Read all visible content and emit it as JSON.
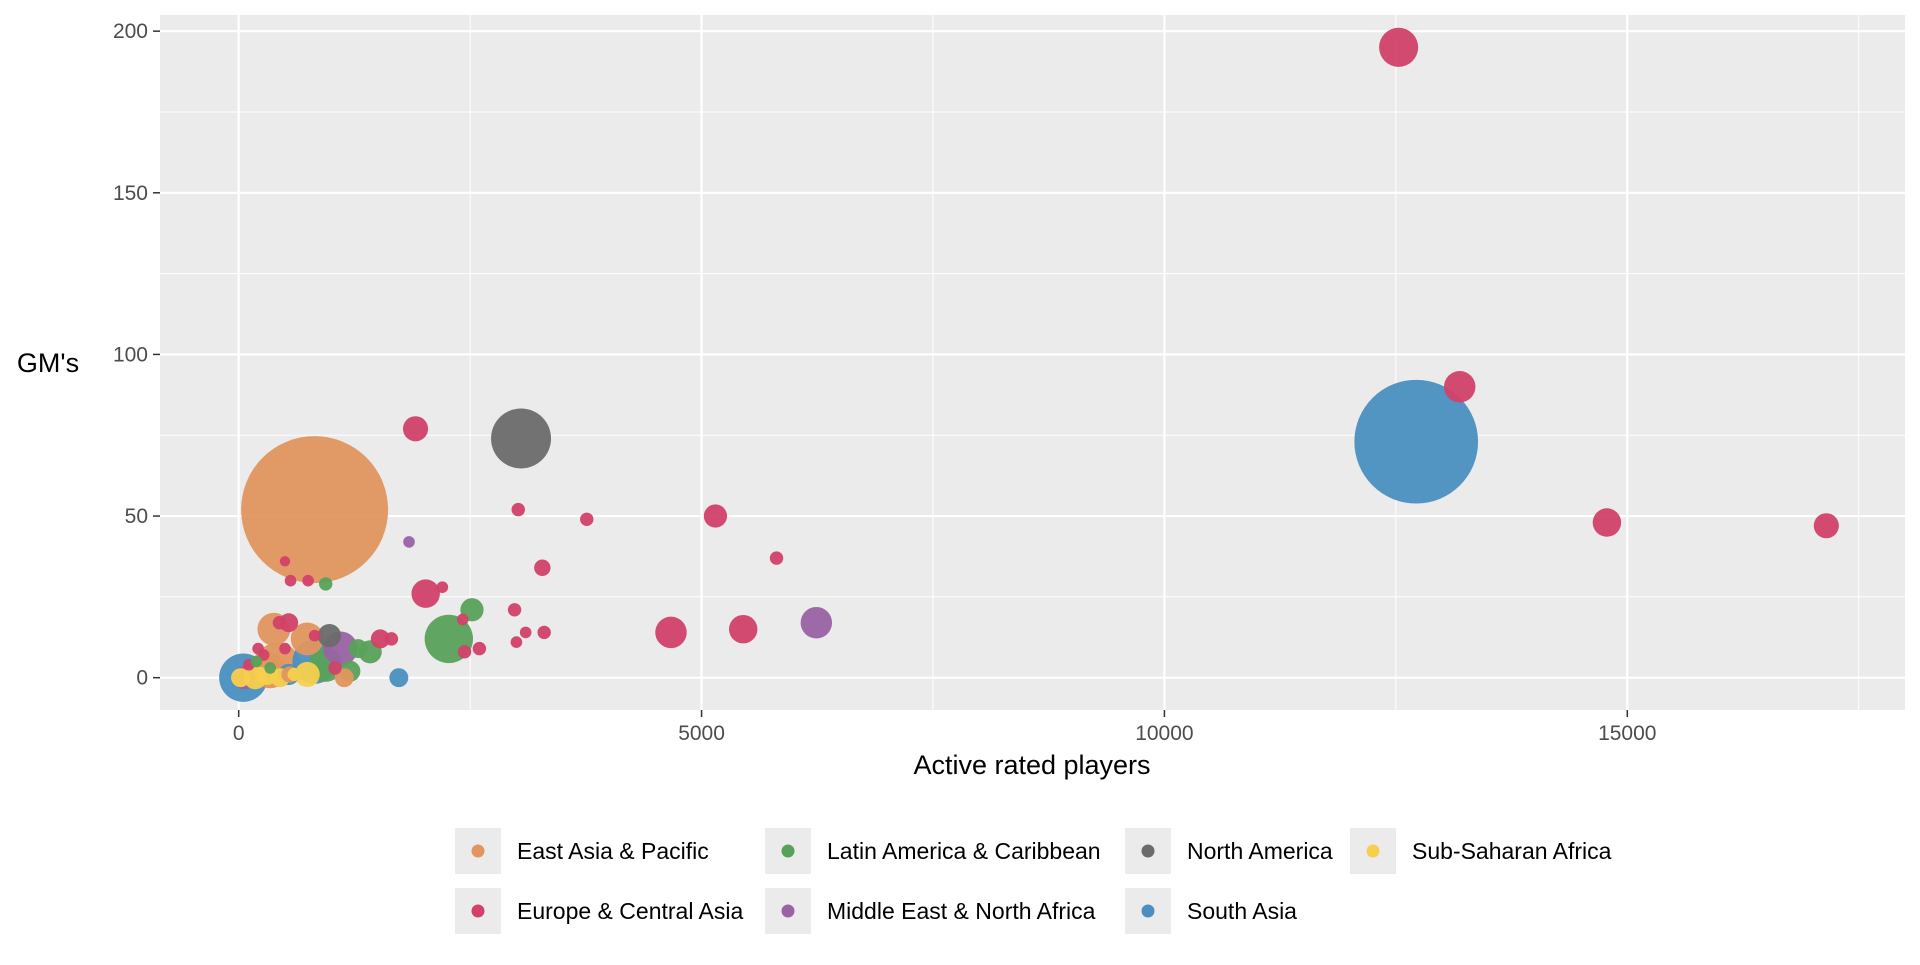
{
  "chart_data": {
    "type": "scatter",
    "title": "",
    "xlabel": "Active rated players",
    "ylabel": "GM's",
    "xlim": [
      -850,
      18000
    ],
    "ylim": [
      -10,
      205
    ],
    "x_ticks": [
      0,
      5000,
      10000,
      15000
    ],
    "y_ticks": [
      0,
      50,
      100,
      150,
      200
    ],
    "grid": true,
    "legend_position": "bottom",
    "size_encodes": "bubble area (unlabeled third variable)",
    "series": [
      {
        "name": "East Asia & Pacific",
        "color": "#E0965E",
        "points": [
          {
            "x": 820,
            "y": 52,
            "s": 2400
          },
          {
            "x": 380,
            "y": 15,
            "s": 120
          },
          {
            "x": 740,
            "y": 12,
            "s": 120
          },
          {
            "x": 420,
            "y": 4,
            "s": 220
          },
          {
            "x": 340,
            "y": 2,
            "s": 130
          },
          {
            "x": 550,
            "y": 1,
            "s": 30
          },
          {
            "x": 1140,
            "y": 0,
            "s": 40
          },
          {
            "x": 280,
            "y": 6,
            "s": 40
          }
        ]
      },
      {
        "name": "Europe & Central Asia",
        "color": "#D2416A",
        "points": [
          {
            "x": 12530,
            "y": 195,
            "s": 170
          },
          {
            "x": 13190,
            "y": 90,
            "s": 110
          },
          {
            "x": 14780,
            "y": 48,
            "s": 90
          },
          {
            "x": 17150,
            "y": 47,
            "s": 70
          },
          {
            "x": 1910,
            "y": 77,
            "s": 70
          },
          {
            "x": 5150,
            "y": 50,
            "s": 60
          },
          {
            "x": 3020,
            "y": 52,
            "s": 20
          },
          {
            "x": 3760,
            "y": 49,
            "s": 20
          },
          {
            "x": 5810,
            "y": 37,
            "s": 20
          },
          {
            "x": 3280,
            "y": 34,
            "s": 30
          },
          {
            "x": 2020,
            "y": 26,
            "s": 90
          },
          {
            "x": 2200,
            "y": 28,
            "s": 15
          },
          {
            "x": 4670,
            "y": 14,
            "s": 110
          },
          {
            "x": 5450,
            "y": 15,
            "s": 90
          },
          {
            "x": 2980,
            "y": 21,
            "s": 20
          },
          {
            "x": 3300,
            "y": 14,
            "s": 20
          },
          {
            "x": 3100,
            "y": 14,
            "s": 15
          },
          {
            "x": 3000,
            "y": 11,
            "s": 15
          },
          {
            "x": 2420,
            "y": 18,
            "s": 15
          },
          {
            "x": 2600,
            "y": 9,
            "s": 20
          },
          {
            "x": 2440,
            "y": 8,
            "s": 20
          },
          {
            "x": 1530,
            "y": 12,
            "s": 40
          },
          {
            "x": 1650,
            "y": 12,
            "s": 20
          },
          {
            "x": 500,
            "y": 36,
            "s": 12
          },
          {
            "x": 560,
            "y": 30,
            "s": 15
          },
          {
            "x": 750,
            "y": 30,
            "s": 15
          },
          {
            "x": 540,
            "y": 17,
            "s": 40
          },
          {
            "x": 440,
            "y": 17,
            "s": 20
          },
          {
            "x": 820,
            "y": 13,
            "s": 15
          },
          {
            "x": 210,
            "y": 9,
            "s": 15
          },
          {
            "x": 270,
            "y": 7,
            "s": 15
          },
          {
            "x": 110,
            "y": 4,
            "s": 15
          },
          {
            "x": 1040,
            "y": 3,
            "s": 20
          },
          {
            "x": 500,
            "y": 9,
            "s": 15
          }
        ]
      },
      {
        "name": "Latin America & Caribbean",
        "color": "#58A15A",
        "points": [
          {
            "x": 2270,
            "y": 12,
            "s": 260
          },
          {
            "x": 2520,
            "y": 21,
            "s": 60
          },
          {
            "x": 1420,
            "y": 8,
            "s": 60
          },
          {
            "x": 1290,
            "y": 9,
            "s": 40
          },
          {
            "x": 1200,
            "y": 2,
            "s": 50
          },
          {
            "x": 940,
            "y": 4,
            "s": 130
          },
          {
            "x": 940,
            "y": 29,
            "s": 20
          },
          {
            "x": 340,
            "y": 3,
            "s": 15
          },
          {
            "x": 190,
            "y": 5,
            "s": 15
          }
        ]
      },
      {
        "name": "Middle East & North Africa",
        "color": "#9A62A5",
        "points": [
          {
            "x": 6240,
            "y": 17,
            "s": 110
          },
          {
            "x": 1100,
            "y": 9,
            "s": 130
          },
          {
            "x": 1840,
            "y": 42,
            "s": 15
          },
          {
            "x": 60,
            "y": 0,
            "s": 60
          }
        ]
      },
      {
        "name": "North America",
        "color": "#6B6B6B",
        "points": [
          {
            "x": 3050,
            "y": 74,
            "s": 400
          },
          {
            "x": 980,
            "y": 13,
            "s": 60
          }
        ]
      },
      {
        "name": "South Asia",
        "color": "#4A8FC0",
        "points": [
          {
            "x": 12720,
            "y": 73,
            "s": 1700
          },
          {
            "x": 50,
            "y": 0,
            "s": 260
          },
          {
            "x": 820,
            "y": 5,
            "s": 220
          },
          {
            "x": 1730,
            "y": 0,
            "s": 40
          },
          {
            "x": 540,
            "y": 1,
            "s": 50
          }
        ]
      },
      {
        "name": "Sub-Saharan Africa",
        "color": "#F6D04D",
        "points": [
          {
            "x": 20,
            "y": 0,
            "s": 40
          },
          {
            "x": 180,
            "y": 0,
            "s": 60
          },
          {
            "x": 310,
            "y": 1,
            "s": 50
          },
          {
            "x": 450,
            "y": 0,
            "s": 40
          },
          {
            "x": 740,
            "y": 1,
            "s": 70
          },
          {
            "x": 600,
            "y": 1,
            "s": 20
          }
        ]
      }
    ]
  },
  "legend": {
    "items": [
      {
        "label": "East Asia & Pacific",
        "color": "#E0965E"
      },
      {
        "label": "Europe & Central Asia",
        "color": "#D2416A"
      },
      {
        "label": "Latin America & Caribbean",
        "color": "#58A15A"
      },
      {
        "label": "Middle East & North Africa",
        "color": "#9A62A5"
      },
      {
        "label": "North America",
        "color": "#6B6B6B"
      },
      {
        "label": "South Asia",
        "color": "#4A8FC0"
      },
      {
        "label": "Sub-Saharan Africa",
        "color": "#F6D04D"
      }
    ]
  },
  "colors": {
    "panel": "#EBEBEB",
    "grid": "#FFFFFF",
    "tick": "#333333",
    "legend_key_bg": "#EBEBEB"
  }
}
